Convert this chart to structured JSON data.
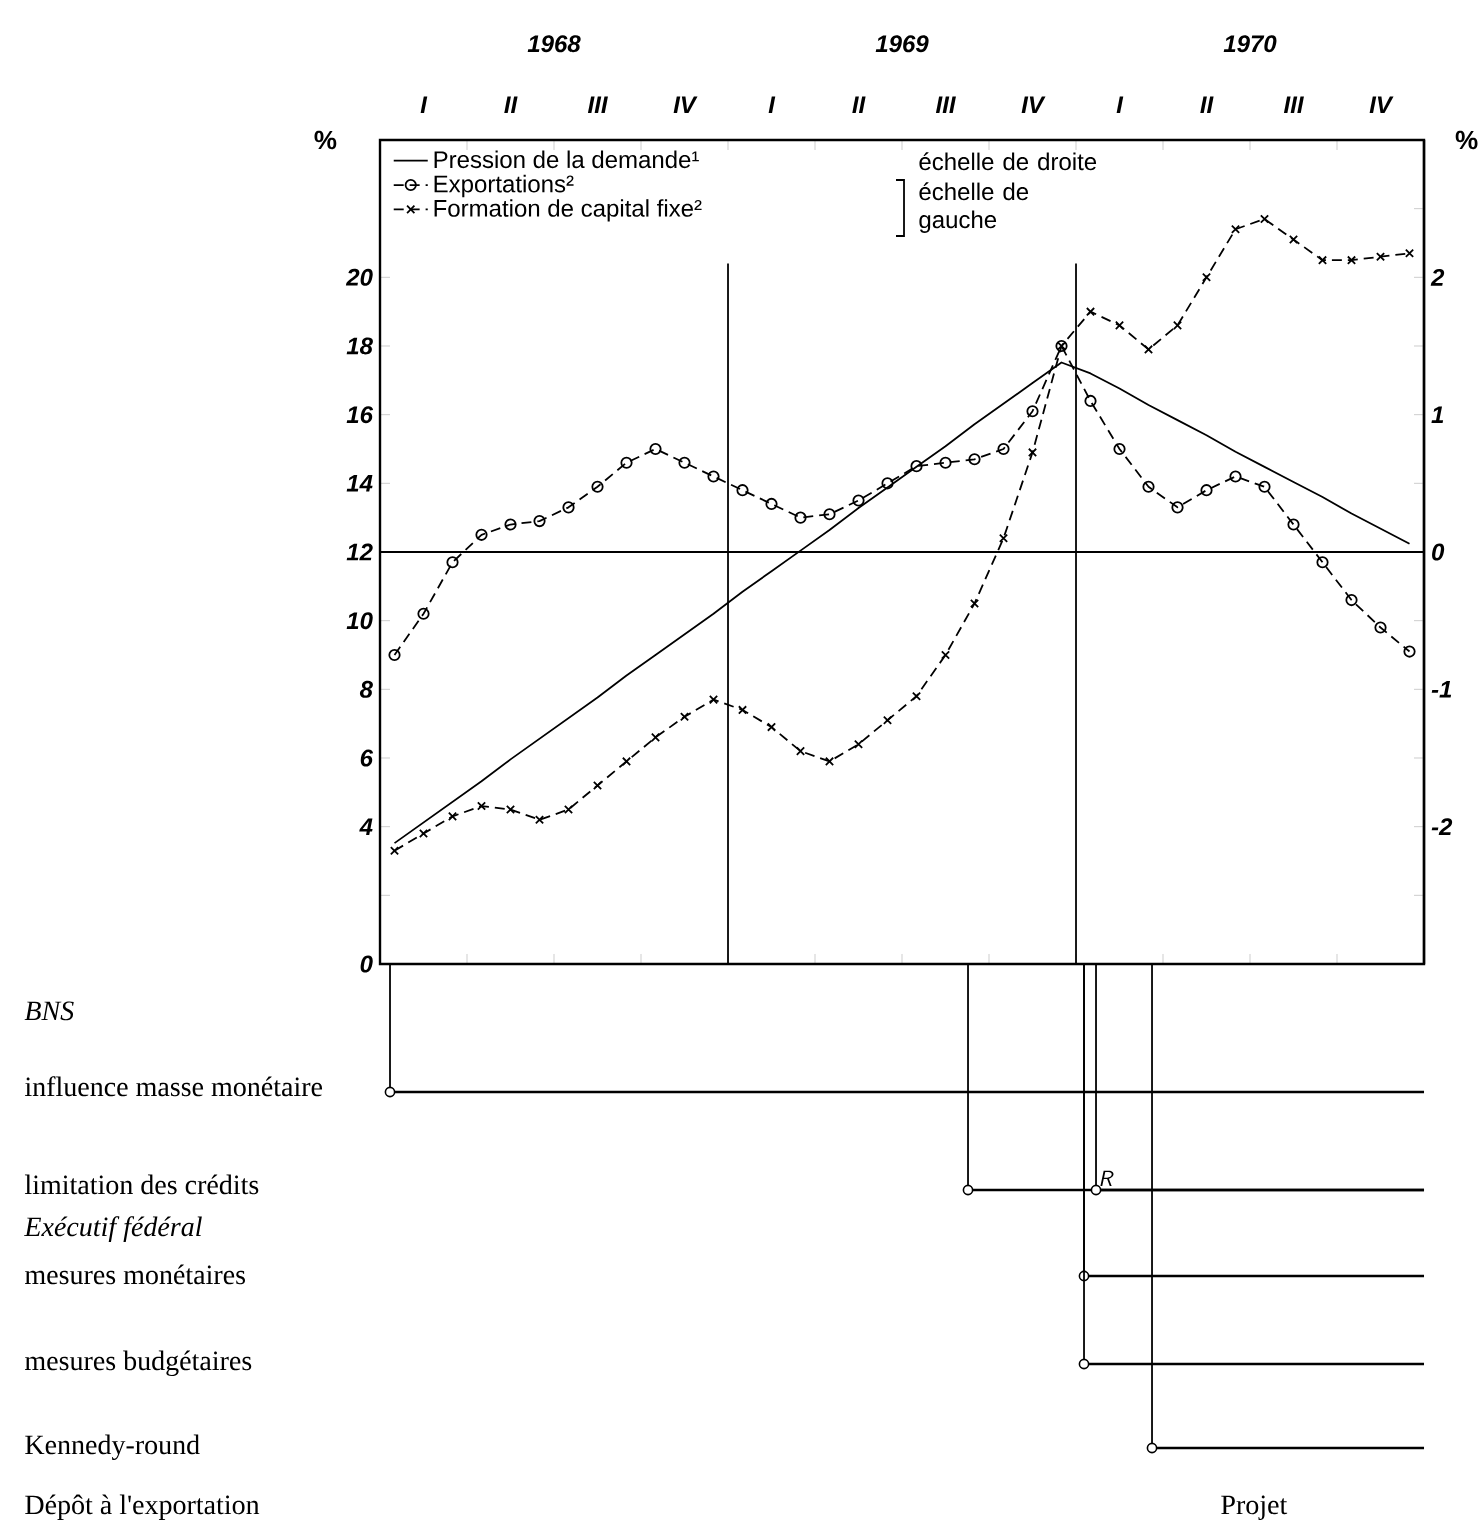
{
  "chart_data": [
    {
      "type": "line",
      "categories": [
        null,
        "I",
        null,
        null,
        "II",
        null,
        null,
        "III",
        null,
        null,
        "IV",
        null,
        null,
        "I",
        null,
        null,
        "II",
        null,
        null,
        "III",
        null,
        null,
        "IV",
        null,
        null,
        "I",
        null,
        null,
        "II",
        null,
        null,
        "III",
        null,
        null,
        "IV",
        null
      ],
      "ylim": [
        0,
        24
      ],
      "yticks": [
        0,
        {
          "value": 2,
          "label": null
        },
        4,
        6,
        8,
        10,
        12,
        14,
        16,
        18,
        20
      ],
      "y2lim": [
        -3,
        3
      ],
      "y2ticks": [
        {
          "value": -2.5,
          "label": null
        },
        -2,
        {
          "value": -1.5,
          "label": null
        },
        -1,
        {
          "value": -0.5,
          "label": null
        },
        0,
        {
          "value": 0.5,
          "label": null
        },
        1,
        {
          "value": 1.5,
          "label": null
        },
        2,
        {
          "value": 2.5,
          "label": null
        }
      ],
      "ylabel": "%",
      "y2label": "%",
      "legend": "top left",
      "annotations": [
        "échelle de droite",
        "échelle de gauche",
        "1968",
        "1969",
        "1970"
      ],
      "ref_lines": [
        {
          "axis": "y2",
          "value": 0
        }
      ],
      "series": [
        {
          "name": "Pression de la demande¹",
          "color": "#000000",
          "axis": "y2",
          "marker": "none",
          "line_style": "solid",
          "values": [
            -2.12,
            -1.97,
            -1.82,
            -1.67,
            -1.51,
            -1.36,
            -1.21,
            -1.06,
            -0.9,
            -0.75,
            -0.6,
            -0.45,
            -0.29,
            -0.14,
            0.01,
            0.16,
            0.32,
            0.47,
            0.62,
            0.77,
            0.93,
            1.08,
            1.23,
            1.38,
            1.3,
            1.19,
            1.07,
            0.96,
            0.85,
            0.73,
            0.62,
            0.51,
            0.4,
            0.28,
            0.17,
            0.06
          ]
        },
        {
          "name": "Exportations²",
          "color": "#000000",
          "marker": "circle",
          "line_style": "dashed",
          "values": [
            9.0,
            10.2,
            11.7,
            12.5,
            12.8,
            12.9,
            13.3,
            13.9,
            14.6,
            15.0,
            14.6,
            14.2,
            13.8,
            13.4,
            13.0,
            13.1,
            13.5,
            14.0,
            14.5,
            14.6,
            14.7,
            15.0,
            16.1,
            18.0,
            16.4,
            15.0,
            13.9,
            13.3,
            13.8,
            14.2,
            13.9,
            12.8,
            11.7,
            10.6,
            9.8,
            9.1
          ]
        },
        {
          "name": "Formation de capital fixe²",
          "color": "#000000",
          "marker": "cross",
          "line_style": "dashed",
          "values": [
            3.3,
            3.8,
            4.3,
            4.6,
            4.5,
            4.2,
            4.5,
            5.2,
            5.9,
            6.6,
            7.2,
            7.7,
            7.4,
            6.9,
            6.2,
            5.9,
            6.4,
            7.1,
            7.8,
            9.0,
            10.5,
            12.4,
            14.9,
            18.0,
            19.0,
            18.6,
            17.9,
            18.6,
            20.0,
            21.4,
            21.7,
            21.1,
            20.5,
            20.5,
            20.6,
            20.7
          ]
        }
      ]
    },
    {
      "type": "other",
      "annotations": [
        "BNS",
        "influence masse monétaire",
        "limitation des crédits",
        "Exécutif fédéral",
        "mesures monétaires",
        "mesures budgétaires",
        "Kennedy-round",
        "Dépôt à l'exportation",
        "Projet",
        "R"
      ]
    }
  ]
}
